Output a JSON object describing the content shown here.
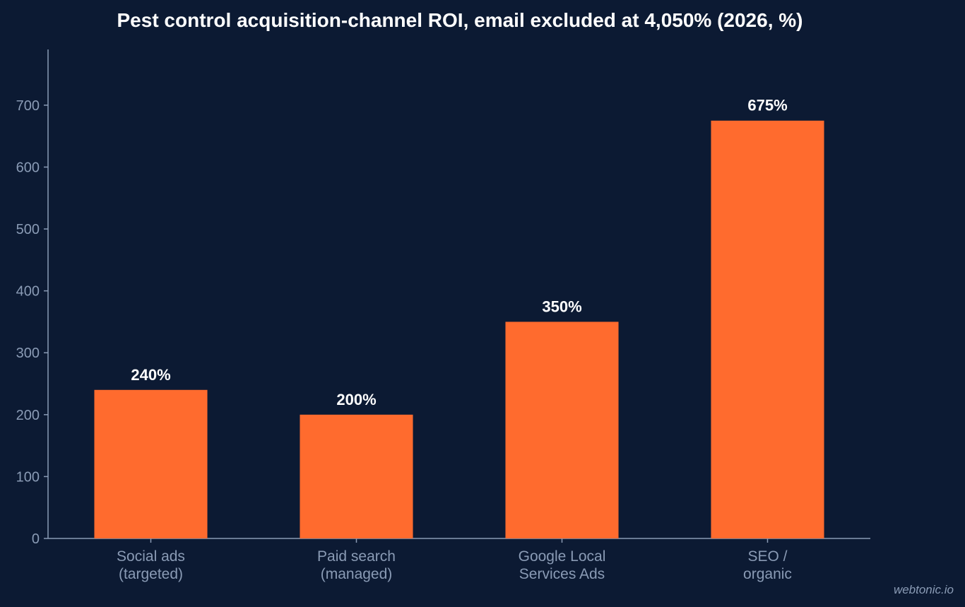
{
  "chart_data": {
    "type": "bar",
    "title": "Pest control acquisition-channel ROI, email excluded at 4,050% (2026, %)",
    "xlabel": "",
    "ylabel": "",
    "categories": [
      [
        "Social ads",
        "(targeted)"
      ],
      [
        "Paid search",
        "(managed)"
      ],
      [
        "Google Local",
        "Services Ads"
      ],
      [
        "SEO /",
        "organic"
      ]
    ],
    "values": [
      240,
      200,
      350,
      675
    ],
    "data_labels": [
      "240%",
      "200%",
      "350%",
      "675%"
    ],
    "ylim": [
      0,
      790
    ],
    "yticks": [
      0,
      100,
      200,
      300,
      400,
      500,
      600,
      700
    ],
    "grid": false,
    "legend": "none",
    "bar_color": "#ff6b2e",
    "background_color": "#0c1a33"
  },
  "watermark": "webtonic.io"
}
